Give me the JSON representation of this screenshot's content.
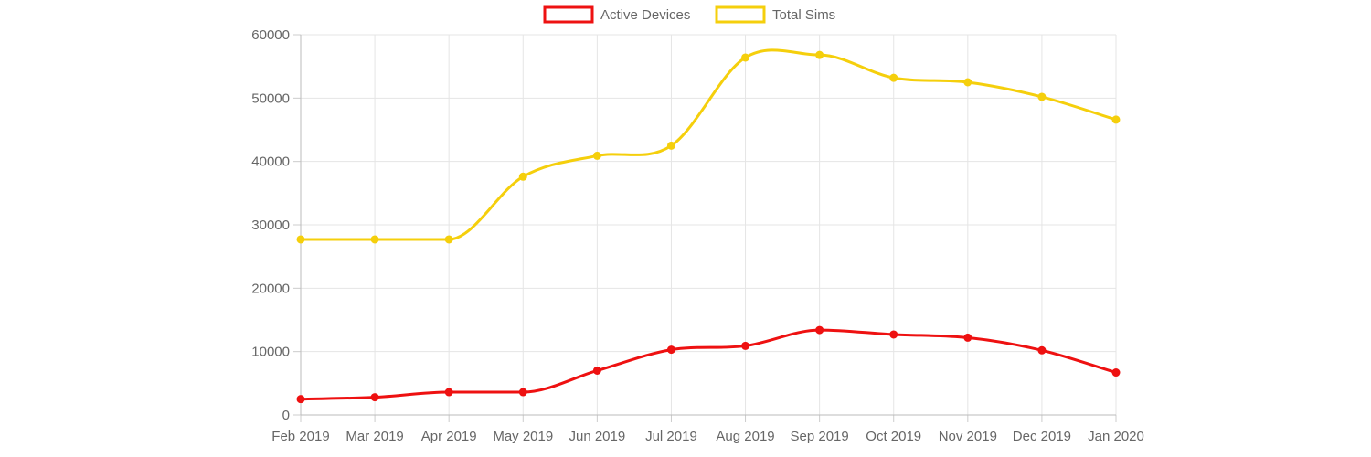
{
  "chart_data": {
    "type": "line",
    "categories": [
      "Feb 2019",
      "Mar 2019",
      "Apr 2019",
      "May 2019",
      "Jun 2019",
      "Jul 2019",
      "Aug 2019",
      "Sep 2019",
      "Oct 2019",
      "Nov 2019",
      "Dec 2019",
      "Jan 2020"
    ],
    "series": [
      {
        "name": "Active Devices",
        "color": "#ee1111",
        "values": [
          2500,
          2800,
          3600,
          3600,
          7000,
          10300,
          10900,
          13400,
          12700,
          12200,
          10200,
          6700
        ]
      },
      {
        "name": "Total Sims",
        "color": "#f5cf0c",
        "values": [
          27700,
          27700,
          27700,
          37600,
          40900,
          42500,
          56400,
          56800,
          53200,
          52500,
          50200,
          46600
        ]
      }
    ],
    "ylim": [
      0,
      60000
    ],
    "yticks": [
      "0",
      "10000",
      "20000",
      "30000",
      "40000",
      "50000",
      "60000"
    ],
    "grid": true,
    "legend_position": "top-center",
    "title": "",
    "xlabel": "",
    "ylabel": ""
  }
}
